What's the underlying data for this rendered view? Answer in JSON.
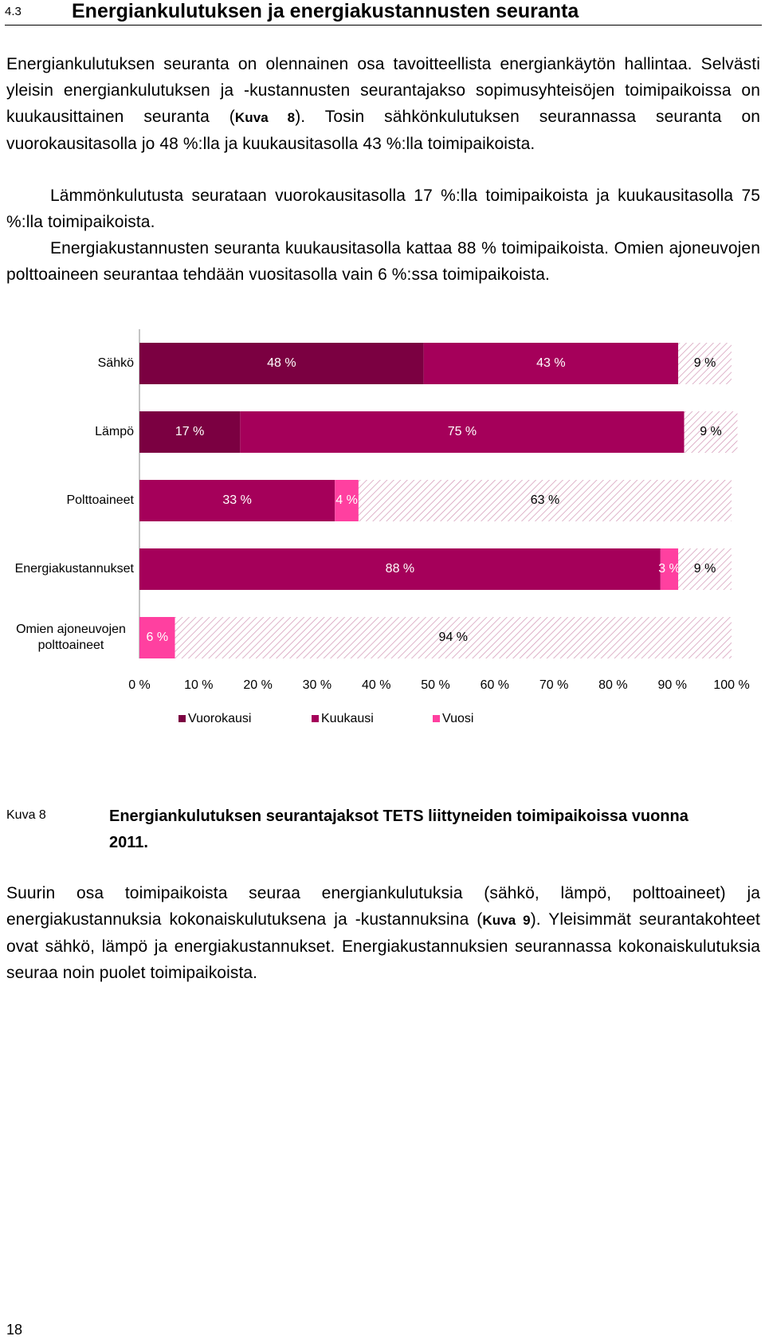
{
  "header": {
    "number": "4.3",
    "title": "Energiankulutuksen ja energiakustannusten seuranta"
  },
  "paragraphs": [
    {
      "parts": [
        "Energiankulutuksen seuranta on olennainen osa tavoitteellista energiankäytön hallintaa. Selvästi yleisin energiankulutuksen ja -kustannusten seurantajakso sopimusyhteisöjen toimipaikoissa on kuukausittainen seuranta (",
        "Kuva 8",
        "). Tosin sähkönkulutuksen seurannassa seuranta on vuorokausitasolla jo 48 %:lla ja kuukausitasolla 43 %:lla toimipaikoista."
      ]
    },
    {
      "parts": [
        "Lämmönkulutusta seurataan vuorokausitasolla 17 %:lla toimipaikoista ja kuukausitasolla 75 %:lla toimipaikoista."
      ]
    },
    {
      "parts": [
        "Energiakustannusten seuranta kuukausitasolla kattaa 88 % toimipaikoista. Omien ajoneuvojen polttoaineen seurantaa tehdään vuositasolla vain 6 %:ssa toimipaikoista."
      ]
    },
    {
      "parts": [
        "Suurin osa toimipaikoista seuraa energiankulutuksia (sähkö, lämpö, polttoaineet) ja energiakustannuksia kokonaiskulutuksena ja -kustannuksina (",
        "Kuva 9",
        "). Yleisimmät seurantakohteet ovat sähkö, lämpö ja energiakustannukset. Energiakustannuksien seurannassa kokonaiskulutuksia seuraa noin puolet toimipaikoista."
      ]
    }
  ],
  "caption": {
    "label": "Kuva 8",
    "text": "Energiankulutuksen seurantajaksot TETS liittyneiden toimipaikoissa vuonna 2011."
  },
  "page_number": "18",
  "chart_data": {
    "type": "stacked-barh",
    "categories": [
      "Sähkö",
      "Lämpö",
      "Polttoaineet",
      "Energiakustannukset",
      "Omien ajoneuvojen polttoaineet"
    ],
    "series": [
      {
        "name": "Vuorokausi",
        "color": "#7b0041",
        "values": [
          48,
          17,
          null,
          null,
          null
        ],
        "value_labels": [
          "48 %",
          "17 %",
          null,
          null,
          null
        ]
      },
      {
        "name": "Kuukausi",
        "color": "#a5005a",
        "values": [
          43,
          75,
          33,
          88,
          null
        ],
        "value_labels": [
          "43 %",
          "75 %",
          "33 %",
          "88 %",
          null
        ]
      },
      {
        "name": "Vuosi",
        "color": "#ff40a0",
        "values": [
          null,
          null,
          4,
          3,
          6
        ],
        "value_labels": [
          null,
          null,
          "4 %",
          "3 %",
          "6 %"
        ]
      },
      {
        "color": "#d49ab8",
        "fill": "hatched",
        "values": [
          9,
          9,
          63,
          9,
          94
        ],
        "value_labels": [
          "9 %",
          "9 %",
          "63 %",
          "9 %",
          "94 %"
        ]
      }
    ],
    "xlim": [
      0,
      100
    ],
    "xticks": [
      {
        "value": 0,
        "label": "0 %"
      },
      {
        "value": 10,
        "label": "10 %"
      },
      {
        "value": 20,
        "label": "20 %"
      },
      {
        "value": 30,
        "label": "30 %"
      },
      {
        "value": 40,
        "label": "40 %"
      },
      {
        "value": 50,
        "label": "50 %"
      },
      {
        "value": 60,
        "label": "60 %"
      },
      {
        "value": 70,
        "label": "70 %"
      },
      {
        "value": 80,
        "label": "80 %"
      },
      {
        "value": 90,
        "label": "90 %"
      },
      {
        "value": 100,
        "label": "100 %"
      }
    ],
    "legend": "bottom"
  }
}
